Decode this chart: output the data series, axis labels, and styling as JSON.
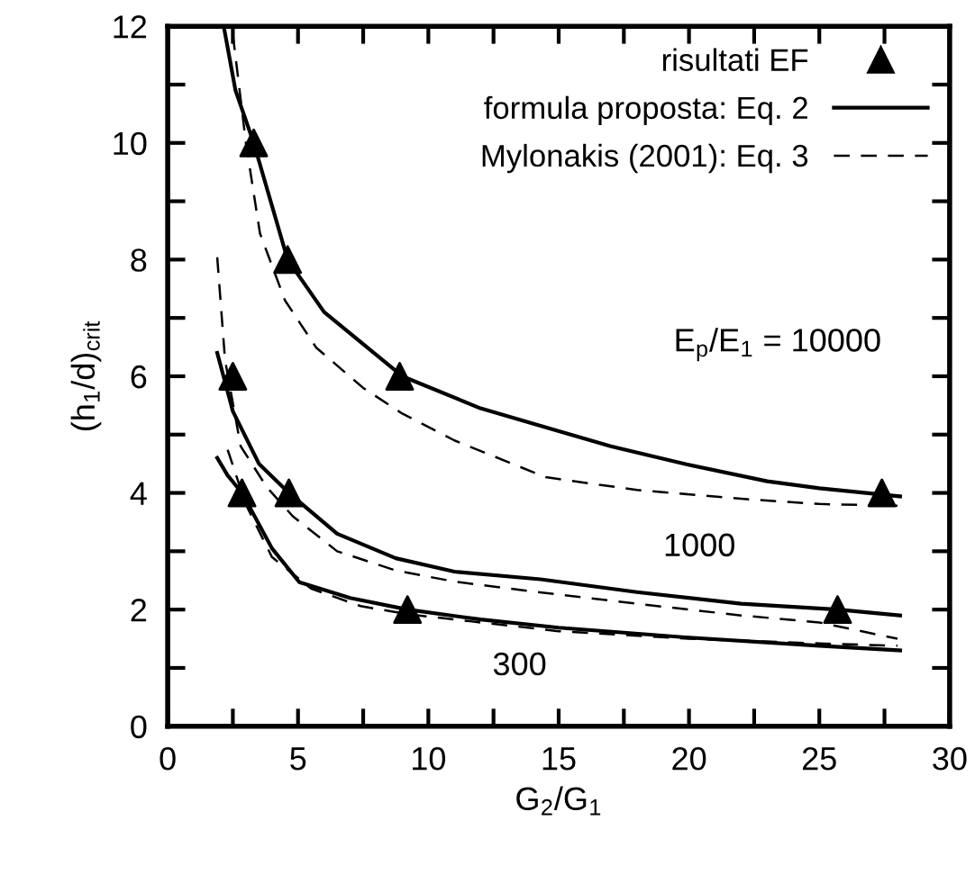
{
  "chart_data": {
    "type": "line",
    "xlabel": "G$_{2}$/G$_{1}$",
    "ylabel": "(h$_{1}$/d)$_{crit}$",
    "xlim": [
      0,
      30
    ],
    "ylim": [
      0,
      12
    ],
    "xticks": [
      0,
      {
        "value": 2.5,
        "label": null
      },
      5,
      {
        "value": 7.5,
        "label": null
      },
      10,
      {
        "value": 12.5,
        "label": null
      },
      15,
      {
        "value": 17.5,
        "label": null
      },
      20,
      {
        "value": 22.5,
        "label": null
      },
      25,
      {
        "value": 27.5,
        "label": null
      },
      30
    ],
    "yticks": [
      0,
      {
        "value": 1,
        "label": null
      },
      2,
      {
        "value": 3,
        "label": null
      },
      4,
      {
        "value": 5,
        "label": null
      },
      6,
      {
        "value": 7,
        "label": null
      },
      8,
      {
        "value": 9,
        "label": null
      },
      10,
      {
        "value": 11,
        "label": null
      },
      12
    ],
    "grid": false,
    "legend": "top right",
    "series": [
      {
        "name": "risultati EF",
        "type": "scatter",
        "marker": "triangle",
        "color": "#000000",
        "x": [
          3.3,
          4.6,
          8.9,
          27.4
        ],
        "values": [
          10,
          8,
          6,
          4
        ]
      },
      {
        "type": "scatter",
        "marker": "triangle",
        "color": "#000000",
        "x": [
          2.5,
          4.65,
          25.7
        ],
        "values": [
          6,
          4,
          2
        ]
      },
      {
        "type": "scatter",
        "marker": "triangle",
        "color": "#000000",
        "x": [
          2.85,
          9.2
        ],
        "values": [
          4,
          2
        ]
      },
      {
        "name": "formula proposta: Eq. 2",
        "line_style": "solid",
        "color": "#000000",
        "x": [
          2.15,
          2.6,
          3.3,
          4.6,
          6,
          9,
          12,
          14.3,
          17,
          19.9,
          23,
          25,
          28.1
        ],
        "values": [
          12,
          10.9,
          10,
          8,
          7.1,
          6,
          5.45,
          5.15,
          4.8,
          4.49,
          4.2,
          4.08,
          3.94
        ]
      },
      {
        "line_style": "solid",
        "color": "#000000",
        "x": [
          1.9,
          2.5,
          3.5,
          4.65,
          6.5,
          8.75,
          11,
          14.3,
          18,
          22,
          25.7,
          28.1
        ],
        "values": [
          6.4,
          5.4,
          4.5,
          4,
          3.3,
          2.88,
          2.65,
          2.52,
          2.3,
          2.1,
          2,
          1.9
        ]
      },
      {
        "line_style": "solid",
        "color": "#000000",
        "x": [
          1.9,
          2.3,
          2.85,
          4,
          5.05,
          7,
          9.2,
          12,
          15,
          20,
          25,
          28.1
        ],
        "values": [
          4.6,
          4.3,
          4,
          3.05,
          2.47,
          2.2,
          2,
          1.83,
          1.69,
          1.52,
          1.38,
          1.3
        ]
      },
      {
        "name": "Mylonakis (2001): Eq. 3",
        "line_style": "dashed",
        "color": "#000000",
        "x": [
          2.5,
          3,
          3.54,
          4.5,
          5.7,
          7.5,
          9,
          11,
          14.5,
          18,
          22,
          25,
          28
        ],
        "values": [
          11.86,
          10,
          8.45,
          7.3,
          6.49,
          5.8,
          5.36,
          4.9,
          4.27,
          4.05,
          3.9,
          3.81,
          3.78
        ]
      },
      {
        "line_style": "dashed",
        "color": "#000000",
        "x": [
          1.9,
          2.2,
          2.8,
          3.8,
          4.8,
          6.5,
          8.75,
          11,
          14,
          18,
          22,
          25,
          28
        ],
        "values": [
          8.04,
          6.28,
          4.8,
          4.1,
          3.6,
          3,
          2.67,
          2.48,
          2.31,
          2.1,
          1.9,
          1.78,
          1.5
        ]
      },
      {
        "line_style": "dashed",
        "color": "#000000",
        "x": [
          2.3,
          3,
          4,
          5.5,
          7.4,
          9.2,
          11.6,
          15,
          20,
          25,
          28
        ],
        "values": [
          4.74,
          3.8,
          2.9,
          2.36,
          2.06,
          1.92,
          1.8,
          1.63,
          1.5,
          1.42,
          1.38
        ]
      }
    ],
    "annotations": [
      "E$_{p}$/E$_{1}$ = 10000",
      "1000",
      "300"
    ]
  }
}
